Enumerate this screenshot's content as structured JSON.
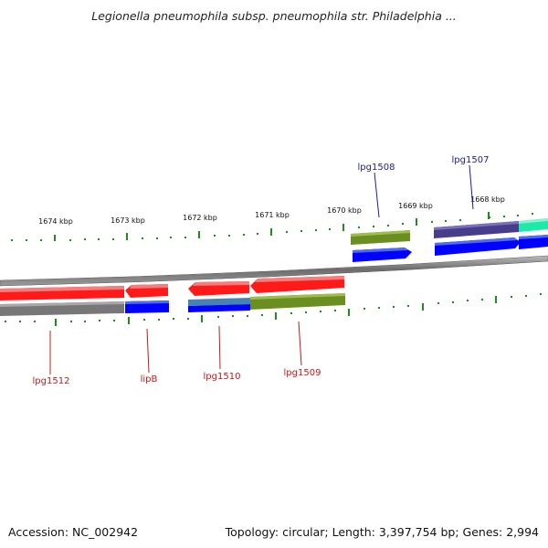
{
  "title": "Legionella pneumophila subsp. pneumophila str. Philadelphia ...",
  "footer": {
    "accession": "Accession: NC_002942",
    "summary": "Topology: circular; Length: 3,397,754 bp; Genes: 2,994"
  },
  "ticks": [
    {
      "label": "1674 kbp"
    },
    {
      "label": "1673 kbp"
    },
    {
      "label": "1672 kbp"
    },
    {
      "label": "1671 kbp"
    },
    {
      "label": "1670 kbp"
    },
    {
      "label": "1669 kbp"
    },
    {
      "label": "1668 kbp"
    }
  ],
  "labels": [
    {
      "text": "lpg1508",
      "color": "#1a1aa6"
    },
    {
      "text": "lpg1507",
      "color": "#1a1aa6"
    },
    {
      "text": "lpg1512",
      "color": "#c81818"
    },
    {
      "text": "lipB",
      "color": "#c81818"
    },
    {
      "text": "lpg1510",
      "color": "#c81818"
    },
    {
      "text": "lpg1509",
      "color": "#c81818"
    }
  ],
  "colors": {
    "forward_gene": "#0000ff",
    "reverse_gene": "#ff0000",
    "backbone": "#7a7a7a",
    "tick": "#1e8c1e",
    "cog_green": "#6b8e23",
    "cog_purple": "#483d8b",
    "cog_cyan": "#1de9a8",
    "cog_steel": "#4682b4",
    "cog_gray": "#777777"
  }
}
